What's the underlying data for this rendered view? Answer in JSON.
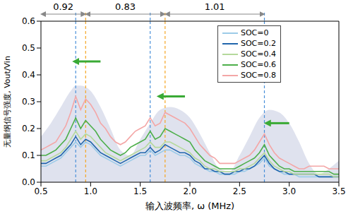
{
  "chart_data": {
    "type": "line",
    "x_label": "输入波频率, ω (MHz)",
    "y_label": "无量纲信号强度, Vout/Vin",
    "x": [
      0.5,
      0.55,
      0.6,
      0.65,
      0.7,
      0.75,
      0.8,
      0.85,
      0.9,
      0.95,
      1.0,
      1.05,
      1.1,
      1.15,
      1.2,
      1.25,
      1.3,
      1.35,
      1.4,
      1.45,
      1.5,
      1.55,
      1.6,
      1.65,
      1.7,
      1.75,
      1.8,
      1.85,
      1.9,
      1.95,
      2.0,
      2.05,
      2.1,
      2.15,
      2.2,
      2.25,
      2.3,
      2.35,
      2.4,
      2.45,
      2.5,
      2.55,
      2.6,
      2.65,
      2.7,
      2.75,
      2.8,
      2.85,
      2.9,
      2.95,
      3.0,
      3.05,
      3.1,
      3.15,
      3.2,
      3.25,
      3.3,
      3.35,
      3.4,
      3.45,
      3.5
    ],
    "series": [
      {
        "name": "SOC=0",
        "color": "#9ccbe8",
        "values": [
          0.06,
          0.06,
          0.07,
          0.08,
          0.09,
          0.11,
          0.13,
          0.15,
          0.13,
          0.15,
          0.14,
          0.12,
          0.1,
          0.09,
          0.08,
          0.07,
          0.06,
          0.07,
          0.08,
          0.09,
          0.1,
          0.1,
          0.12,
          0.1,
          0.11,
          0.12,
          0.12,
          0.11,
          0.1,
          0.1,
          0.09,
          0.07,
          0.06,
          0.05,
          0.04,
          0.04,
          0.03,
          0.03,
          0.03,
          0.03,
          0.04,
          0.04,
          0.05,
          0.06,
          0.07,
          0.09,
          0.06,
          0.05,
          0.04,
          0.03,
          0.03,
          0.03,
          0.02,
          0.02,
          0.02,
          0.02,
          0.02,
          0.02,
          0.02,
          0.02,
          0.02
        ]
      },
      {
        "name": "SOC=0.2",
        "color": "#2166ac",
        "values": [
          0.07,
          0.07,
          0.08,
          0.09,
          0.1,
          0.12,
          0.14,
          0.17,
          0.14,
          0.16,
          0.15,
          0.13,
          0.11,
          0.1,
          0.09,
          0.08,
          0.07,
          0.08,
          0.09,
          0.1,
          0.11,
          0.11,
          0.13,
          0.11,
          0.12,
          0.14,
          0.13,
          0.12,
          0.11,
          0.11,
          0.1,
          0.08,
          0.07,
          0.05,
          0.05,
          0.04,
          0.04,
          0.03,
          0.03,
          0.04,
          0.04,
          0.05,
          0.05,
          0.06,
          0.08,
          0.1,
          0.07,
          0.05,
          0.04,
          0.04,
          0.03,
          0.03,
          0.03,
          0.03,
          0.03,
          0.03,
          0.02,
          0.02,
          0.02,
          0.02,
          0.02
        ]
      },
      {
        "name": "SOC=0.4",
        "color": "#b5d99c",
        "values": [
          0.08,
          0.08,
          0.09,
          0.1,
          0.11,
          0.13,
          0.16,
          0.19,
          0.16,
          0.18,
          0.17,
          0.15,
          0.13,
          0.11,
          0.1,
          0.09,
          0.08,
          0.09,
          0.1,
          0.11,
          0.12,
          0.13,
          0.15,
          0.13,
          0.13,
          0.15,
          0.15,
          0.14,
          0.13,
          0.12,
          0.11,
          0.09,
          0.08,
          0.06,
          0.05,
          0.05,
          0.04,
          0.04,
          0.04,
          0.04,
          0.05,
          0.05,
          0.06,
          0.07,
          0.09,
          0.11,
          0.08,
          0.06,
          0.05,
          0.04,
          0.04,
          0.03,
          0.03,
          0.03,
          0.03,
          0.03,
          0.03,
          0.03,
          0.03,
          0.02,
          0.02
        ]
      },
      {
        "name": "SOC=0.6",
        "color": "#4daf4a",
        "values": [
          0.1,
          0.1,
          0.11,
          0.12,
          0.14,
          0.16,
          0.2,
          0.24,
          0.2,
          0.23,
          0.21,
          0.19,
          0.16,
          0.14,
          0.12,
          0.11,
          0.1,
          0.11,
          0.13,
          0.14,
          0.15,
          0.16,
          0.19,
          0.16,
          0.17,
          0.2,
          0.19,
          0.18,
          0.17,
          0.16,
          0.15,
          0.12,
          0.1,
          0.08,
          0.07,
          0.06,
          0.05,
          0.05,
          0.05,
          0.05,
          0.06,
          0.07,
          0.08,
          0.09,
          0.11,
          0.14,
          0.1,
          0.08,
          0.06,
          0.05,
          0.05,
          0.04,
          0.04,
          0.04,
          0.04,
          0.04,
          0.04,
          0.04,
          0.04,
          0.03,
          0.03
        ]
      },
      {
        "name": "SOC=0.8",
        "color": "#f4a6a6",
        "values": [
          0.12,
          0.13,
          0.14,
          0.15,
          0.18,
          0.21,
          0.26,
          0.32,
          0.27,
          0.31,
          0.29,
          0.26,
          0.22,
          0.2,
          0.17,
          0.15,
          0.14,
          0.15,
          0.17,
          0.19,
          0.2,
          0.21,
          0.24,
          0.21,
          0.22,
          0.26,
          0.25,
          0.24,
          0.23,
          0.22,
          0.2,
          0.17,
          0.14,
          0.12,
          0.1,
          0.09,
          0.07,
          0.07,
          0.07,
          0.07,
          0.08,
          0.09,
          0.1,
          0.12,
          0.15,
          0.18,
          0.14,
          0.11,
          0.09,
          0.08,
          0.07,
          0.06,
          0.05,
          0.05,
          0.06,
          0.06,
          0.06,
          0.06,
          0.05,
          0.05,
          0.05
        ]
      }
    ],
    "band": {
      "color": "#dfe2ee",
      "x": [
        0.5,
        0.6,
        0.7,
        0.8,
        0.85,
        0.9,
        1.0,
        1.1,
        1.2,
        1.3,
        1.4,
        1.5,
        1.6,
        1.7,
        1.8,
        1.9,
        2.0,
        2.1,
        2.2,
        2.3,
        2.4,
        2.5,
        2.6,
        2.7,
        2.8,
        2.9,
        3.0,
        3.1,
        3.2,
        3.3,
        3.4,
        3.5
      ],
      "upper": [
        0.17,
        0.22,
        0.28,
        0.34,
        0.36,
        0.36,
        0.34,
        0.28,
        0.2,
        0.12,
        0.1,
        0.16,
        0.22,
        0.27,
        0.28,
        0.27,
        0.24,
        0.18,
        0.11,
        0.05,
        0.04,
        0.1,
        0.17,
        0.24,
        0.27,
        0.26,
        0.22,
        0.15,
        0.07,
        0.03,
        0.05,
        0.08
      ]
    },
    "vlines": [
      {
        "x": 0.85,
        "color": "#4a90d9",
        "line_style": "dashed"
      },
      {
        "x": 0.95,
        "color": "#f5a623",
        "line_style": "dashed"
      },
      {
        "x": 1.6,
        "color": "#4a90d9",
        "line_style": "dashed"
      },
      {
        "x": 1.75,
        "color": "#f5a623",
        "line_style": "dashed"
      },
      {
        "x": 2.75,
        "color": "#4a90d9",
        "line_style": "dashed"
      }
    ],
    "spans": [
      {
        "label": "0.92",
        "from": 0.5,
        "to": 0.95
      },
      {
        "label": "0.83",
        "from": 0.95,
        "to": 1.75
      },
      {
        "label": "1.01",
        "from": 1.75,
        "to": 2.75
      }
    ],
    "xlim": [
      0.5,
      3.5
    ],
    "xticks": [
      0.5,
      {
        "value": 1,
        "label": "1.0"
      },
      1.5,
      {
        "value": 2,
        "label": "2.0"
      },
      2.5,
      {
        "value": 3,
        "label": "3.0"
      },
      3.5
    ],
    "ylim": [
      0,
      0.6
    ],
    "yticks": [
      {
        "value": 0,
        "label": "0.0"
      },
      0.1,
      0.2,
      0.3,
      0.4,
      0.5,
      0.6
    ],
    "grid": false,
    "legend": "upper right"
  }
}
